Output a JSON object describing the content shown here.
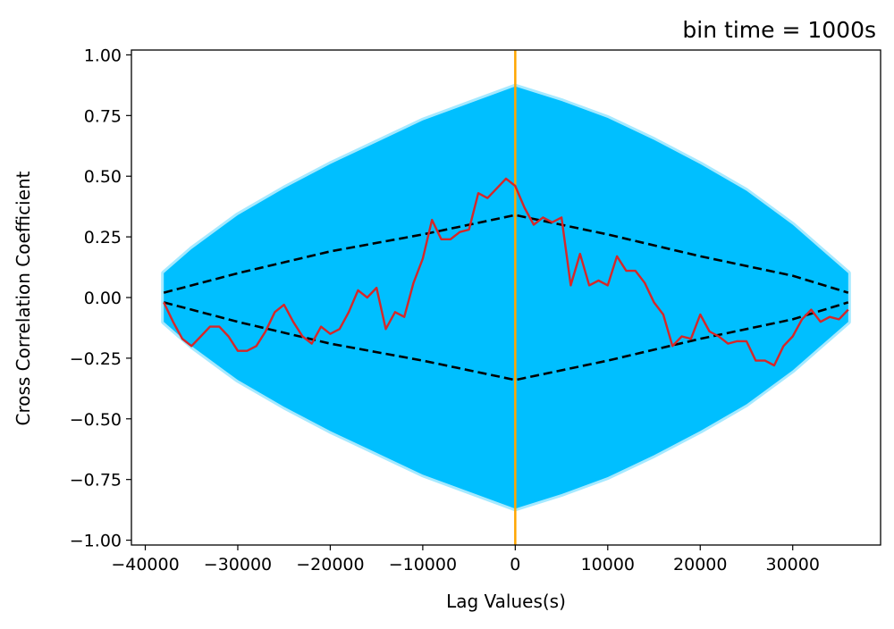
{
  "chart_data": {
    "type": "line",
    "title": "bin time = 1000s",
    "xlabel": "Lag Values(s)",
    "ylabel": "Cross Correlation Coefficient",
    "xlim": [
      -41500,
      39500
    ],
    "ylim": [
      -1.02,
      1.02
    ],
    "xticks": [
      -40000,
      -30000,
      -20000,
      -10000,
      0,
      10000,
      20000,
      30000
    ],
    "xtick_labels": [
      "−40000",
      "−30000",
      "−20000",
      "−10000",
      "0",
      "10000",
      "20000",
      "30000"
    ],
    "yticks": [
      1.0,
      0.75,
      0.5,
      0.25,
      0.0,
      -0.25,
      -0.5,
      -0.75,
      -1.0
    ],
    "ytick_labels": [
      "1.00",
      "0.75",
      "0.50",
      "0.25",
      "0.00",
      "−0.25",
      "−0.50",
      "−0.75",
      "−1.00"
    ],
    "grid": false,
    "colors": {
      "simulations": "#00bfff",
      "observed": "#d62728",
      "confidence": "#000000",
      "zero_line": "#ffa500"
    },
    "simulation_envelope": {
      "x": [
        -38000,
        -35000,
        -30000,
        -25000,
        -20000,
        -15000,
        -10000,
        -5000,
        0,
        5000,
        10000,
        15000,
        20000,
        25000,
        30000,
        33000,
        36000
      ],
      "upper": [
        0.1,
        0.2,
        0.34,
        0.45,
        0.55,
        0.64,
        0.73,
        0.8,
        0.87,
        0.81,
        0.74,
        0.65,
        0.55,
        0.44,
        0.3,
        0.2,
        0.1
      ],
      "lower": [
        -0.1,
        -0.2,
        -0.34,
        -0.45,
        -0.55,
        -0.64,
        -0.73,
        -0.8,
        -0.87,
        -0.81,
        -0.74,
        -0.65,
        -0.55,
        -0.44,
        -0.3,
        -0.2,
        -0.1
      ]
    },
    "series": [
      {
        "x": [
          -38000,
          -37000,
          -36000,
          -35000,
          -34000,
          -33000,
          -32000,
          -31000,
          -30000,
          -29000,
          -28000,
          -27000,
          -26000,
          -25000,
          -24000,
          -23000,
          -22000,
          -21000,
          -20000,
          -19000,
          -18000,
          -17000,
          -16000,
          -15000,
          -14000,
          -13000,
          -12000,
          -11000,
          -10000,
          -9000,
          -8000,
          -7000,
          -6000,
          -5000,
          -4000,
          -3000,
          -2000,
          -1000,
          0,
          1000,
          2000,
          3000,
          4000,
          5000,
          6000,
          7000,
          8000,
          9000,
          10000,
          11000,
          12000,
          13000,
          14000,
          15000,
          16000,
          17000,
          18000,
          19000,
          20000,
          21000,
          22000,
          23000,
          24000,
          25000,
          26000,
          27000,
          28000,
          29000,
          30000,
          31000,
          32000,
          33000,
          34000,
          35000,
          36000
        ],
        "values": [
          -0.02,
          -0.1,
          -0.17,
          -0.2,
          -0.16,
          -0.12,
          -0.12,
          -0.16,
          -0.22,
          -0.22,
          -0.2,
          -0.14,
          -0.06,
          -0.03,
          -0.1,
          -0.16,
          -0.19,
          -0.12,
          -0.15,
          -0.13,
          -0.06,
          0.03,
          0.0,
          0.04,
          -0.13,
          -0.06,
          -0.08,
          0.06,
          0.16,
          0.32,
          0.24,
          0.24,
          0.27,
          0.28,
          0.43,
          0.41,
          0.45,
          0.49,
          0.46,
          0.37,
          0.3,
          0.33,
          0.31,
          0.33,
          0.05,
          0.18,
          0.05,
          0.07,
          0.05,
          0.17,
          0.11,
          0.11,
          0.06,
          -0.02,
          -0.07,
          -0.2,
          -0.16,
          -0.17,
          -0.07,
          -0.14,
          -0.16,
          -0.19,
          -0.18,
          -0.18,
          -0.26,
          -0.26,
          -0.28,
          -0.2,
          -0.16,
          -0.09,
          -0.05,
          -0.1,
          -0.08,
          -0.09,
          -0.05
        ]
      },
      {
        "x": [
          -38000,
          -30000,
          -20000,
          -10000,
          0,
          10000,
          20000,
          30000,
          36000
        ],
        "values": [
          0.02,
          0.1,
          0.19,
          0.26,
          0.34,
          0.26,
          0.17,
          0.09,
          0.02
        ]
      },
      {
        "x": [
          -38000,
          -30000,
          -20000,
          -10000,
          0,
          10000,
          20000,
          30000,
          36000
        ],
        "values": [
          -0.02,
          -0.1,
          -0.19,
          -0.26,
          -0.34,
          -0.26,
          -0.17,
          -0.09,
          -0.02
        ]
      }
    ],
    "vertical_line_x": 0
  }
}
